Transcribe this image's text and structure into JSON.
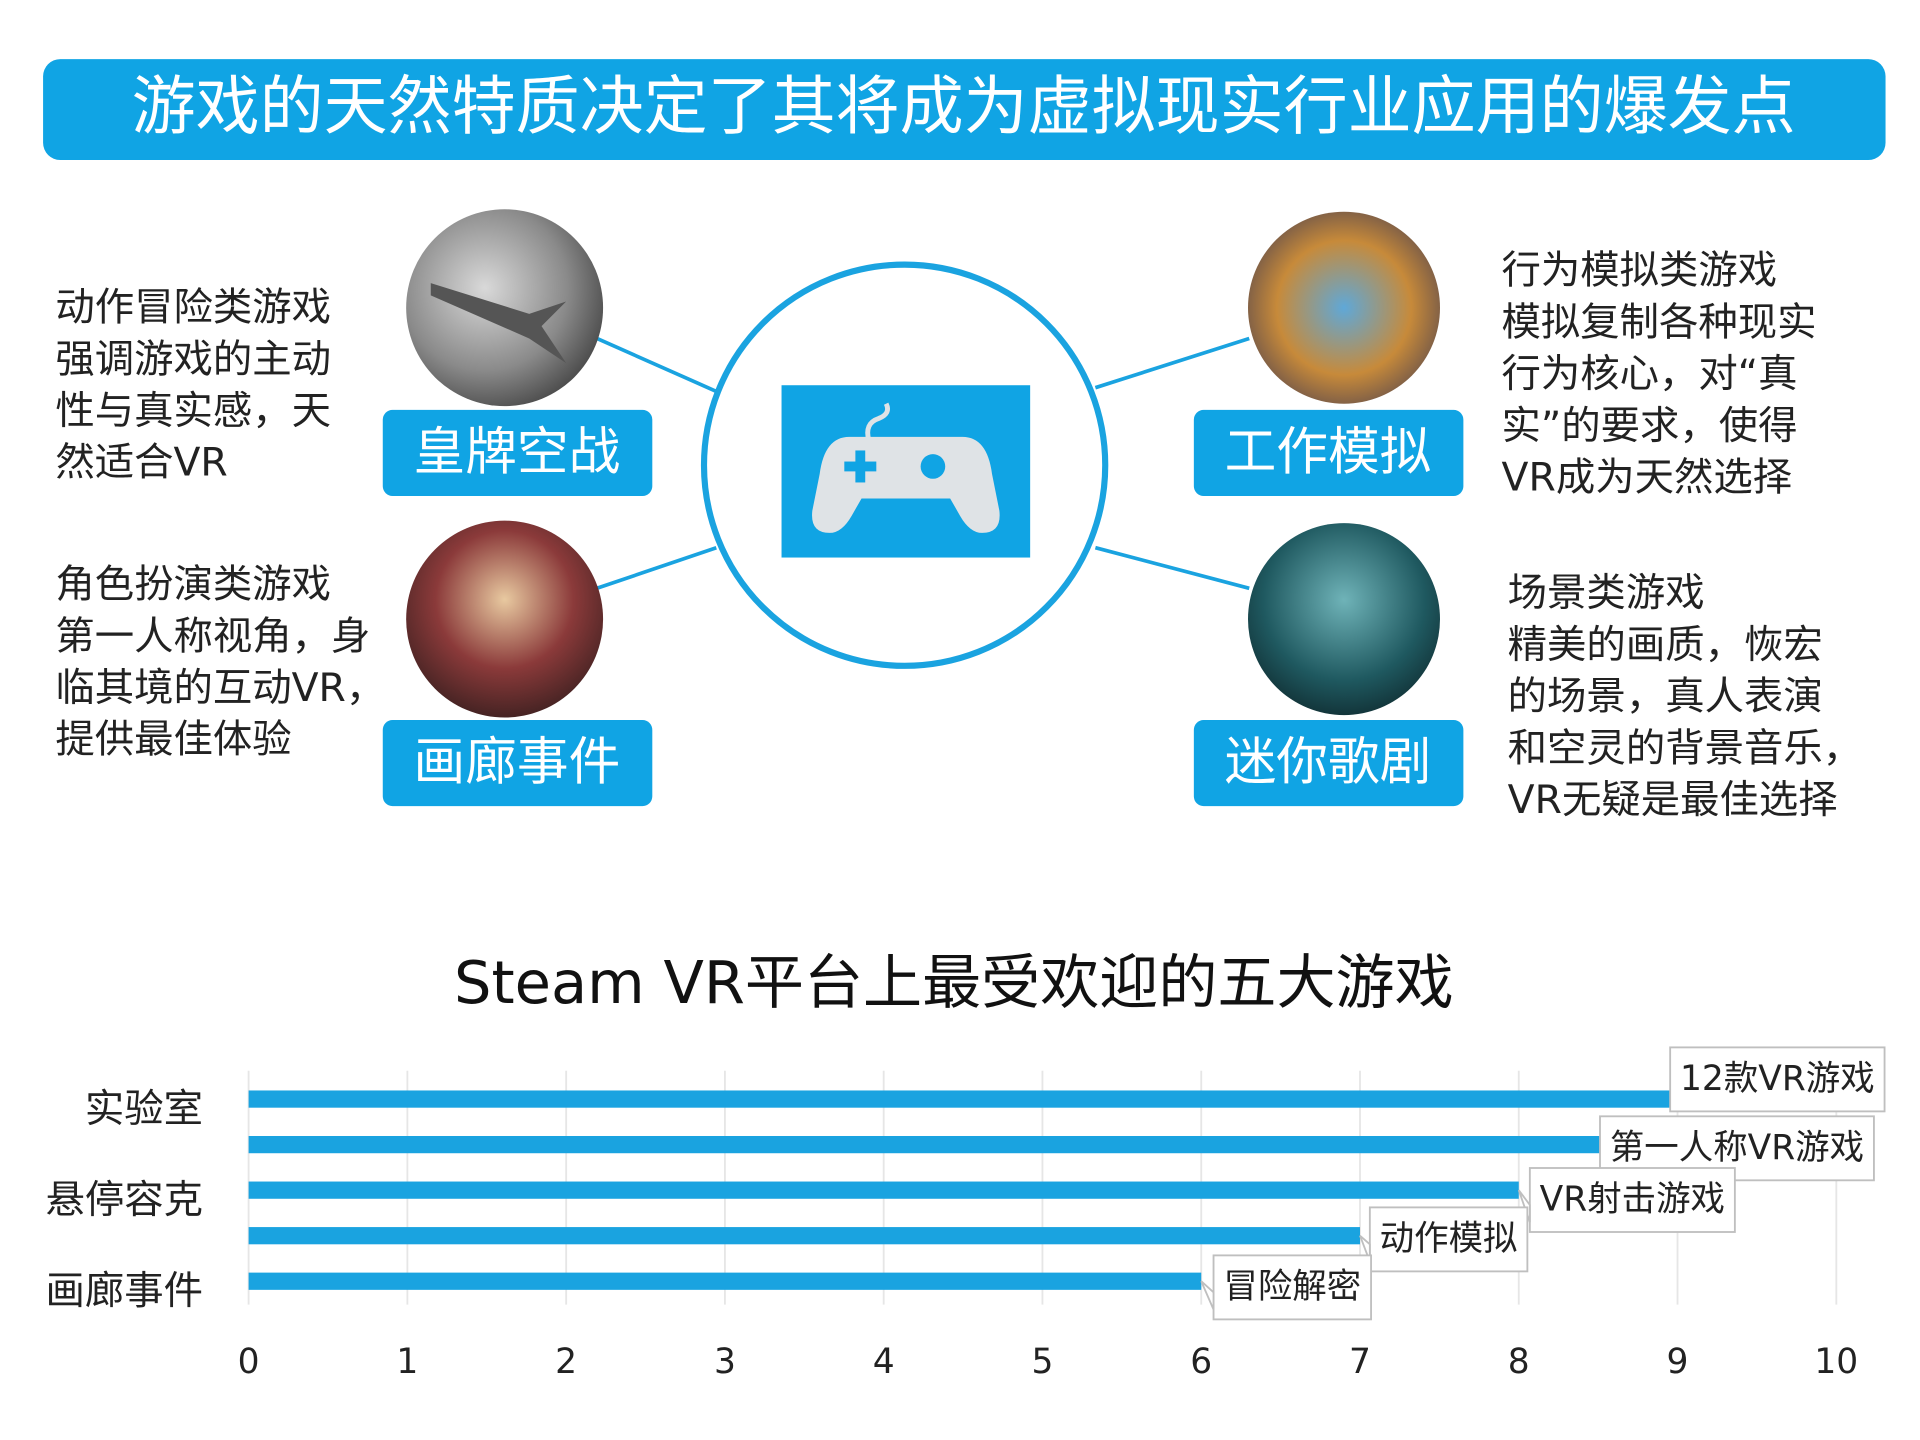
{
  "header": {
    "title": "游戏的天然特质决定了其将成为虚拟现实行业应用的爆发点"
  },
  "games": [
    {
      "name": "皇牌空战",
      "description": [
        "动作冒险类游戏",
        "强调游戏的主动",
        "性与真实感，天",
        "然适合VR"
      ]
    },
    {
      "name": "画廊事件",
      "description": [
        "角色扮演类游戏",
        "第一人称视角，身",
        "临其境的互动VR，",
        "提供最佳体验"
      ]
    },
    {
      "name": "工作模拟",
      "description": [
        "行为模拟类游戏",
        "模拟复制各种现实",
        "行为核心，对“真",
        "实”的要求，使得",
        "VR成为天然选择"
      ]
    },
    {
      "name": "迷你歌剧",
      "description": [
        "场景类游戏",
        "精美的画质，恢宏",
        "的场景，真人表演",
        "和空灵的背景音乐，",
        "VR无疑是最佳选择"
      ]
    }
  ],
  "chart_data": {
    "type": "bar",
    "orientation": "horizontal",
    "title": "Steam VR平台上最受欢迎的五大游戏",
    "categories": [
      "实验室",
      null,
      "悬停容克",
      null,
      "画廊事件"
    ],
    "values": [
      9,
      9,
      8,
      7,
      6
    ],
    "bar_labels": [
      "12款VR游戏",
      "第一人称VR游戏",
      "VR射击游戏",
      "动作模拟",
      "冒险解密"
    ],
    "color": "#1aa3e0",
    "xlim": [
      0,
      10
    ],
    "xticks": [
      0,
      1,
      2,
      3,
      4,
      5,
      6,
      7,
      8,
      9,
      10
    ],
    "grid": true
  }
}
